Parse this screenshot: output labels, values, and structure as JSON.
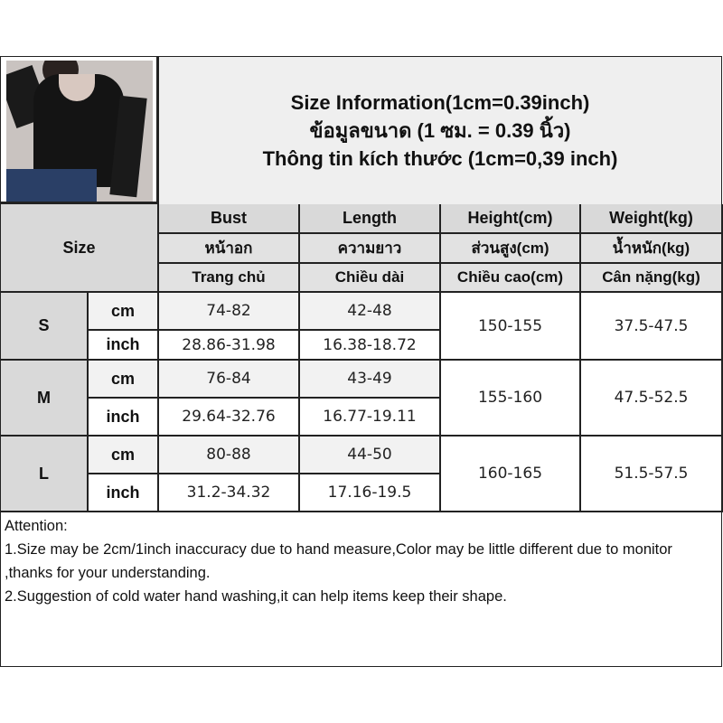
{
  "header": {
    "title_en": "Size Information(1cm=0.39inch)",
    "title_th": "ข้อมูลขนาด (1 ซม. = 0.39 นิ้ว)",
    "title_vi": "Thông tin kích thước (1cm=0,39 inch)"
  },
  "table": {
    "size_header": "Size",
    "columns": [
      {
        "en": "Bust",
        "th": "หน้าอก",
        "vi": "Trang chủ"
      },
      {
        "en": "Length",
        "th": "ความยาว",
        "vi": "Chiều dài"
      },
      {
        "en": "Height(cm)",
        "th": "ส่วนสูง(cm)",
        "vi": "Chiều cao(cm)"
      },
      {
        "en": "Weight(kg)",
        "th": "น้ำหนัก(kg)",
        "vi": "Cân nặng(kg)"
      }
    ],
    "rows": [
      {
        "size": "S",
        "unit_cm": "cm",
        "unit_inch": "inch",
        "bust_cm": "74-82",
        "bust_inch": "28.86-31.98",
        "length_cm": "42-48",
        "length_inch": "16.38-18.72",
        "height": "150-155",
        "weight": "37.5-47.5"
      },
      {
        "size": "M",
        "unit_cm": "cm",
        "unit_inch": "inch",
        "bust_cm": "76-84",
        "bust_inch": "29.64-32.76",
        "length_cm": "43-49",
        "length_inch": "16.77-19.11",
        "height": "155-160",
        "weight": "47.5-52.5"
      },
      {
        "size": "L",
        "unit_cm": "cm",
        "unit_inch": "inch",
        "bust_cm": "80-88",
        "bust_inch": "31.2-34.32",
        "length_cm": "44-50",
        "length_inch": "17.16-19.5",
        "height": "160-165",
        "weight": "51.5-57.5"
      }
    ]
  },
  "attention": {
    "heading": "Attention:",
    "note1": "1.Size may be 2cm/1inch inaccuracy due to hand measure,Color may be little different due to monitor ,thanks for your understanding.",
    "note2": "2.Suggestion of cold water hand washing,it can help items keep their shape."
  }
}
